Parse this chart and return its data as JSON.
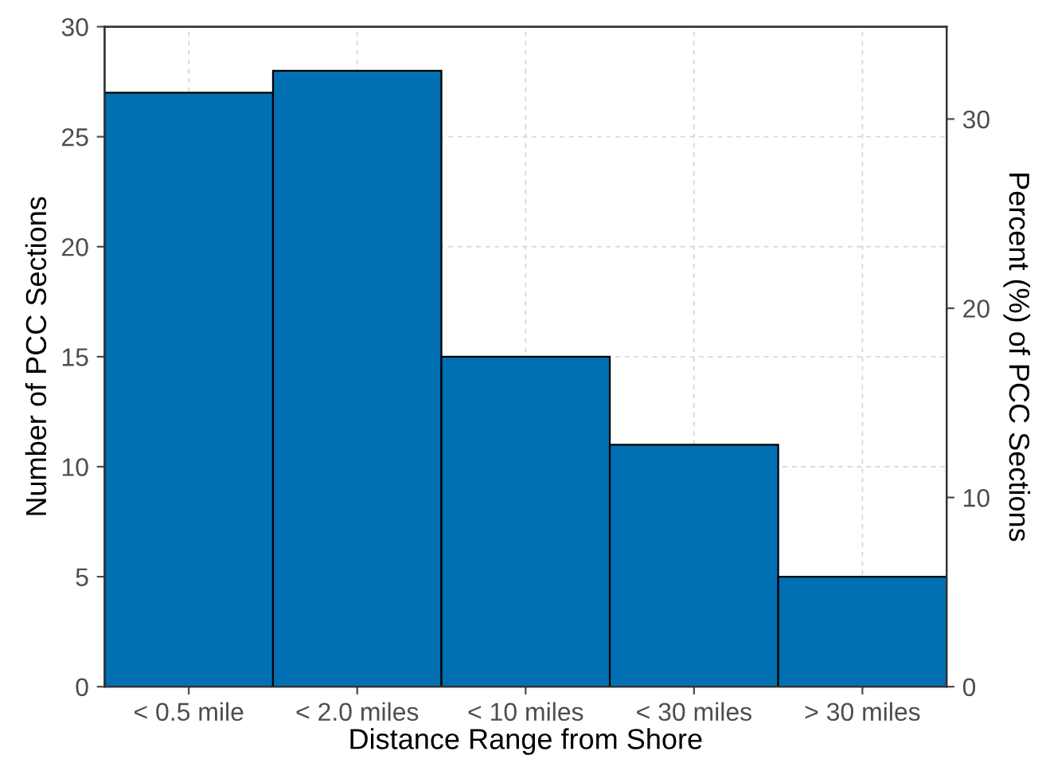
{
  "chart_data": {
    "type": "bar",
    "xlabel": "Distance Range from Shore",
    "ylabel": "Number of PCC Sections",
    "y2label": "Percent (%) of PCC Sections",
    "categories": [
      "< 0.5 mile",
      "< 2.0 miles",
      "< 10 miles",
      "< 30 miles",
      "> 30 miles"
    ],
    "values": [
      27,
      28,
      15,
      11,
      5
    ],
    "color": "#0070b2",
    "ylim": [
      0,
      30
    ],
    "yticks": [
      0,
      5,
      10,
      15,
      20,
      25,
      30
    ],
    "y2lim": [
      0,
      34.88
    ],
    "y2ticks": [
      0,
      10,
      20,
      30
    ],
    "grid": true
  }
}
